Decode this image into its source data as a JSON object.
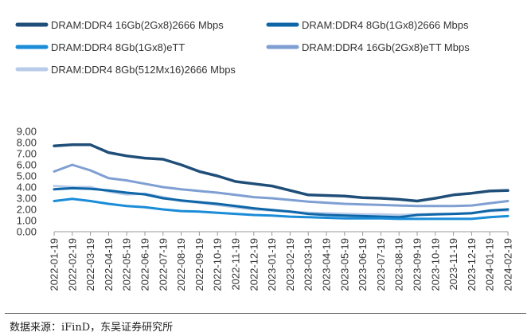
{
  "source_note": "数据来源：iFinD，东吴证券研究所",
  "chart_data": {
    "type": "line",
    "title": "",
    "xlabel": "",
    "ylabel": "",
    "ylim": [
      0,
      9
    ],
    "yticks": [
      "0.00",
      "1.00",
      "2.00",
      "3.00",
      "4.00",
      "5.00",
      "6.00",
      "7.00",
      "8.00",
      "9.00"
    ],
    "xtick_labels": [
      "2022-01-19",
      "2022-02-19",
      "2022-03-19",
      "2022-04-19",
      "2022-05-19",
      "2022-06-19",
      "2022-07-19",
      "2022-08-19",
      "2022-09-19",
      "2022-10-19",
      "2022-11-19",
      "2022-12-19",
      "2023-01-19",
      "2023-02-19",
      "2023-03-19",
      "2023-04-19",
      "2023-05-19",
      "2023-06-19",
      "2023-07-19",
      "2023-08-19",
      "2023-09-19",
      "2023-10-19",
      "2023-11-19",
      "2023-12-19",
      "2024-01-19",
      "2024-02-19"
    ],
    "grid": false,
    "legend_position": "top",
    "series": [
      {
        "name": "DRAM:DDR4 16Gb(2Gx8)2666 Mbps",
        "color": "#1f4e79",
        "width": 3.5,
        "values": [
          7.7,
          7.8,
          7.8,
          7.1,
          6.8,
          6.6,
          6.5,
          6.0,
          5.4,
          5.0,
          4.5,
          4.3,
          4.1,
          3.7,
          3.3,
          3.25,
          3.2,
          3.05,
          3.0,
          2.9,
          2.75,
          3.0,
          3.3,
          3.45,
          3.65,
          3.7
        ]
      },
      {
        "name": "DRAM:DDR4 8Gb(1Gx8)2666 Mbps",
        "color": "#0e66a8",
        "width": 3,
        "values": [
          3.8,
          3.9,
          3.85,
          3.7,
          3.5,
          3.35,
          3.0,
          2.8,
          2.65,
          2.5,
          2.3,
          2.1,
          1.95,
          1.8,
          1.6,
          1.5,
          1.45,
          1.4,
          1.35,
          1.3,
          1.5,
          1.55,
          1.6,
          1.65,
          1.9,
          2.0
        ]
      },
      {
        "name": "DRAM:DDR4 8Gb(1Gx8)eTT",
        "color": "#1a8cd8",
        "width": 3,
        "values": [
          2.75,
          2.95,
          2.75,
          2.5,
          2.3,
          2.2,
          2.0,
          1.85,
          1.8,
          1.7,
          1.6,
          1.5,
          1.45,
          1.35,
          1.3,
          1.25,
          1.2,
          1.2,
          1.2,
          1.15,
          1.15,
          1.15,
          1.15,
          1.15,
          1.3,
          1.4
        ]
      },
      {
        "name": "DRAM:DDR4 16Gb(2Gx8)eTT Mbps",
        "color": "#7f9fd3",
        "width": 3,
        "values": [
          5.4,
          6.0,
          5.5,
          4.8,
          4.6,
          4.3,
          4.0,
          3.8,
          3.65,
          3.5,
          3.3,
          3.1,
          3.0,
          2.85,
          2.7,
          2.6,
          2.5,
          2.45,
          2.4,
          2.35,
          2.3,
          2.3,
          2.3,
          2.35,
          2.55,
          2.75
        ]
      },
      {
        "name": "DRAM:DDR4 8Gb(512Mx16)2666 Mbps",
        "color": "#b8cbe8",
        "width": 3,
        "values": [
          4.1,
          4.0,
          4.0,
          3.6,
          3.35,
          3.4,
          3.1,
          2.75,
          2.6,
          2.4,
          2.2,
          2.0,
          1.9,
          1.8,
          1.7,
          1.65,
          1.6,
          1.55,
          1.55,
          1.5,
          1.55,
          1.6,
          1.6,
          1.7,
          1.85,
          1.9
        ]
      }
    ]
  }
}
